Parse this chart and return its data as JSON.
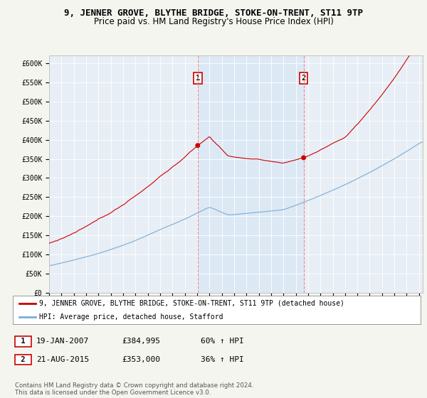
{
  "title": "9, JENNER GROVE, BLYTHE BRIDGE, STOKE-ON-TRENT, ST11 9TP",
  "subtitle": "Price paid vs. HM Land Registry's House Price Index (HPI)",
  "ylim": [
    0,
    620000
  ],
  "xlim_start": 1995.0,
  "xlim_end": 2025.3,
  "sale1_date": 2007.05,
  "sale1_price": 384995,
  "sale2_date": 2015.64,
  "sale2_price": 353000,
  "line_color_red": "#cc0000",
  "line_color_blue": "#7aadd4",
  "vline_color": "#ee8888",
  "shade_color": "#d8e8f5",
  "background_color": "#f5f5f0",
  "plot_bg": "#e8eef5",
  "legend_label1": "9, JENNER GROVE, BLYTHE BRIDGE, STOKE-ON-TRENT, ST11 9TP (detached house)",
  "legend_label2": "HPI: Average price, detached house, Stafford",
  "footnote": "Contains HM Land Registry data © Crown copyright and database right 2024.\nThis data is licensed under the Open Government Licence v3.0.",
  "title_fontsize": 9,
  "subtitle_fontsize": 8.5
}
